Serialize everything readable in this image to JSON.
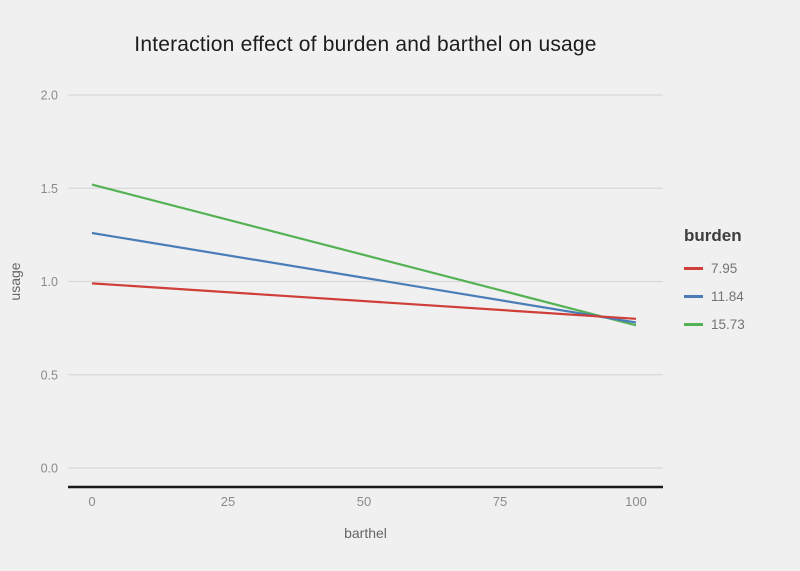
{
  "chart_data": {
    "type": "line",
    "title": "Interaction effect of burden and barthel on usage",
    "xlabel": "barthel",
    "ylabel": "usage",
    "xlim": [
      0,
      100
    ],
    "ylim": [
      0.0,
      2.0
    ],
    "xticks": {
      "values": [
        0,
        25,
        50,
        75,
        100
      ],
      "labels": [
        "0",
        "25",
        "50",
        "75",
        "100"
      ]
    },
    "yticks": {
      "values": [
        0.0,
        0.5,
        1.0,
        1.5,
        2.0
      ],
      "labels": [
        "0.0",
        "0.5",
        "1.0",
        "1.5",
        "2.0"
      ]
    },
    "grid": "horizontal-major-only",
    "legend": {
      "title": "burden",
      "position": "right"
    },
    "series": [
      {
        "name": "7.95",
        "color": "#cf3e38",
        "x": [
          0,
          100
        ],
        "y": [
          0.99,
          0.8
        ]
      },
      {
        "name": "11.84",
        "color": "#4a7db8",
        "x": [
          0,
          100
        ],
        "y": [
          1.26,
          0.78
        ]
      },
      {
        "name": "15.73",
        "color": "#54b254",
        "x": [
          0,
          100
        ],
        "y": [
          1.52,
          0.765
        ]
      }
    ],
    "colors": {
      "background": "#f0f0f0",
      "gridline": "#d8d8d8",
      "axis_line": "#1a1a1a",
      "tick_text": "#8a8a8a",
      "axis_title_text": "#666666",
      "title_text": "#1d1d1d",
      "legend_title_text": "#3d3d3d",
      "legend_label_text": "#737373"
    }
  }
}
